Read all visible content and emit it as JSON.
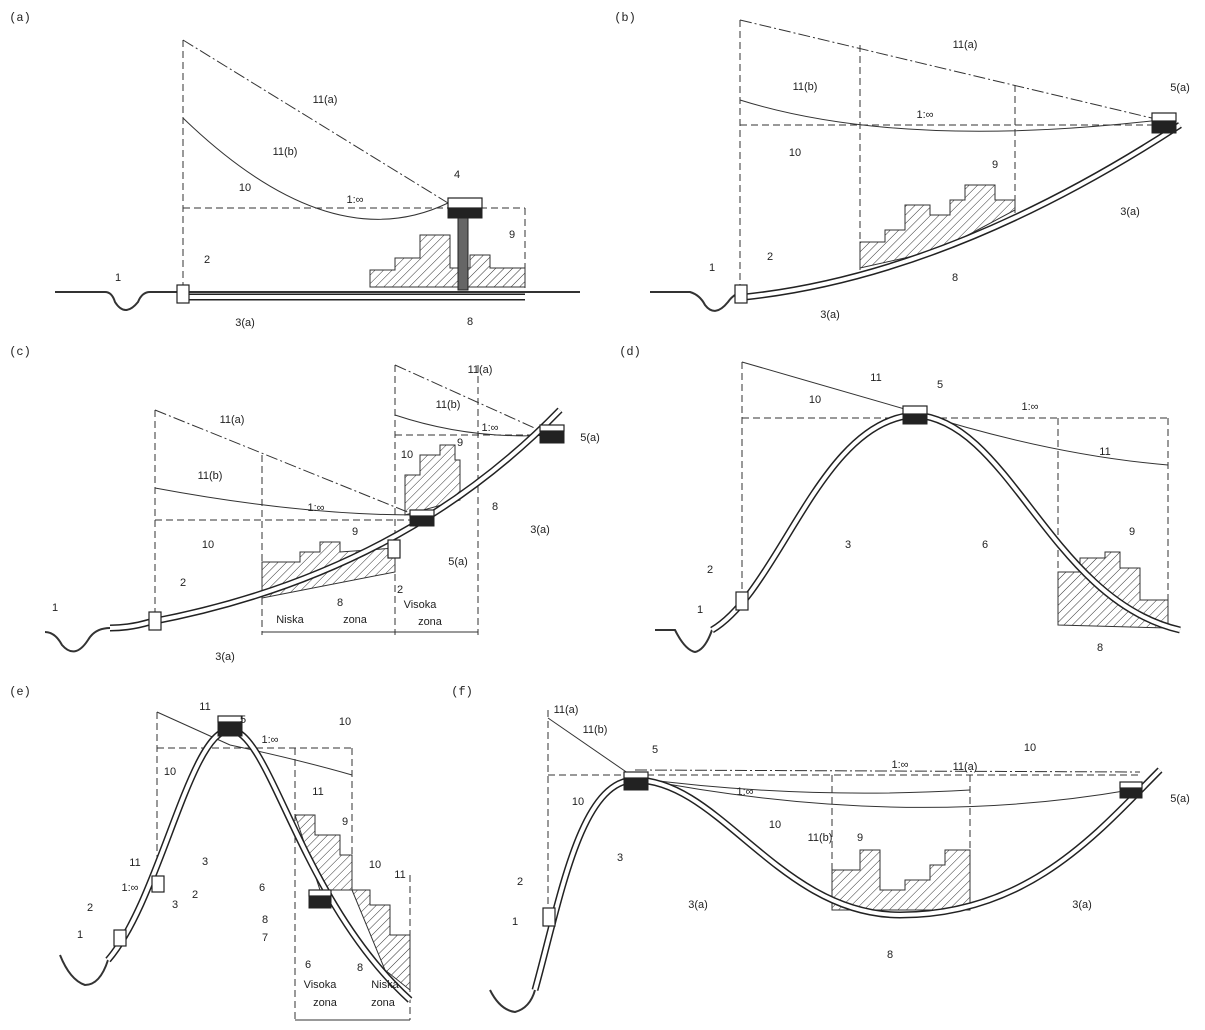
{
  "panels": [
    {
      "tag": "(a)",
      "labels": [
        "11(a)",
        "11(b)",
        "10",
        "1:∞",
        "4",
        "9",
        "1",
        "2",
        "3(a)",
        "8"
      ]
    },
    {
      "tag": "(b)",
      "labels": [
        "11(a)",
        "11(b)",
        "1:∞",
        "10",
        "5(a)",
        "9",
        "3(a)",
        "1",
        "2",
        "8",
        "3(a)"
      ]
    },
    {
      "tag": "(c)",
      "labels": [
        "11(a)",
        "11(b)",
        "1:∞",
        "10",
        "9",
        "1",
        "2",
        "3(a)",
        "8",
        "Niska",
        "zona",
        "Visoka",
        "zona",
        "11(a)",
        "11(b)",
        "1:∞",
        "10",
        "9",
        "5(a)",
        "2",
        "8",
        "3(a)",
        "5(a)"
      ]
    },
    {
      "tag": "(d)",
      "labels": [
        "11",
        "10",
        "5",
        "1:∞",
        "11",
        "3",
        "6",
        "9",
        "2",
        "1",
        "8"
      ]
    },
    {
      "tag": "(e)",
      "labels": [
        "11",
        "5",
        "1:∞",
        "10",
        "10",
        "11",
        "11",
        "1:∞",
        "2",
        "2",
        "3",
        "3",
        "1",
        "6",
        "9",
        "10",
        "11",
        "8",
        "7",
        "6",
        "8",
        "Visoka",
        "zona",
        "Niska",
        "zona"
      ]
    },
    {
      "tag": "(f)",
      "labels": [
        "11(a)",
        "11(b)",
        "10",
        "5",
        "1:∞",
        "11(a)",
        "10",
        "1:∞",
        "10",
        "11(b)",
        "3",
        "3(a)",
        "9",
        "3(a)",
        "8",
        "2",
        "1",
        "5(a)"
      ]
    }
  ]
}
